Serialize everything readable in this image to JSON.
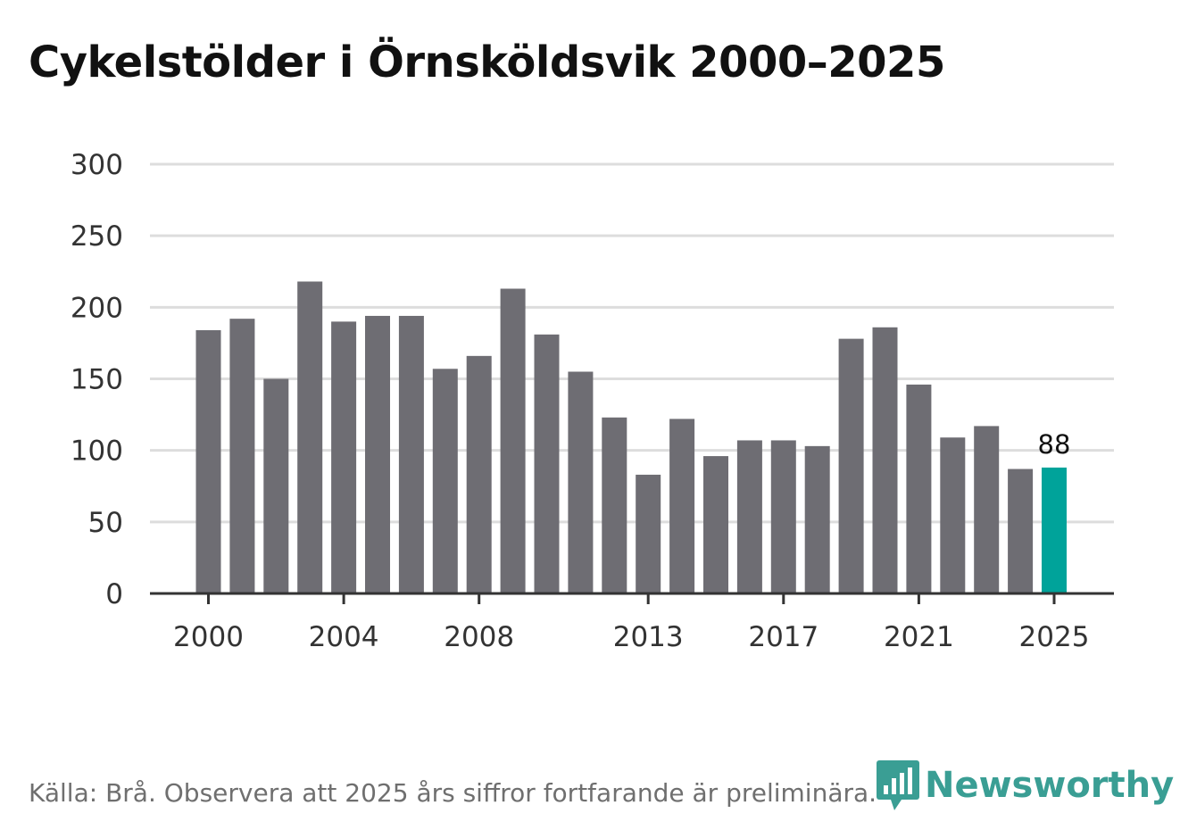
{
  "chart_data": {
    "type": "bar",
    "title": "Cykelstölder i Örnsköldsvik 2000–2025",
    "categories": [
      "2000",
      "2001",
      "2002",
      "2003",
      "2004",
      "2005",
      "2006",
      "2007",
      "2008",
      "2009",
      "2010",
      "2011",
      "2012",
      "2013",
      "2014",
      "2015",
      "2016",
      "2017",
      "2018",
      "2019",
      "2020",
      "2021",
      "2022",
      "2023",
      "2024",
      "2025"
    ],
    "values": [
      184,
      192,
      150,
      218,
      190,
      194,
      194,
      157,
      166,
      213,
      181,
      155,
      123,
      83,
      122,
      96,
      107,
      107,
      103,
      178,
      186,
      146,
      109,
      117,
      87,
      88
    ],
    "ylim": [
      0,
      300
    ],
    "yticks": [
      0,
      50,
      100,
      150,
      200,
      250,
      300
    ],
    "xticks": [
      "2000",
      "2004",
      "2008",
      "2013",
      "2017",
      "2021",
      "2025"
    ],
    "highlight": {
      "category": "2025",
      "label": "88"
    },
    "xlabel": "",
    "ylabel": "",
    "colors": {
      "bar": "#6e6d73",
      "highlight": "#00a39a",
      "grid": "#dddddd",
      "axis": "#333333"
    }
  },
  "source": "Källa: Brå. Observera att 2025 års siffror fortfarande är preliminära.",
  "logo": {
    "text": "Newsworthy",
    "color": "#3a9e94"
  }
}
